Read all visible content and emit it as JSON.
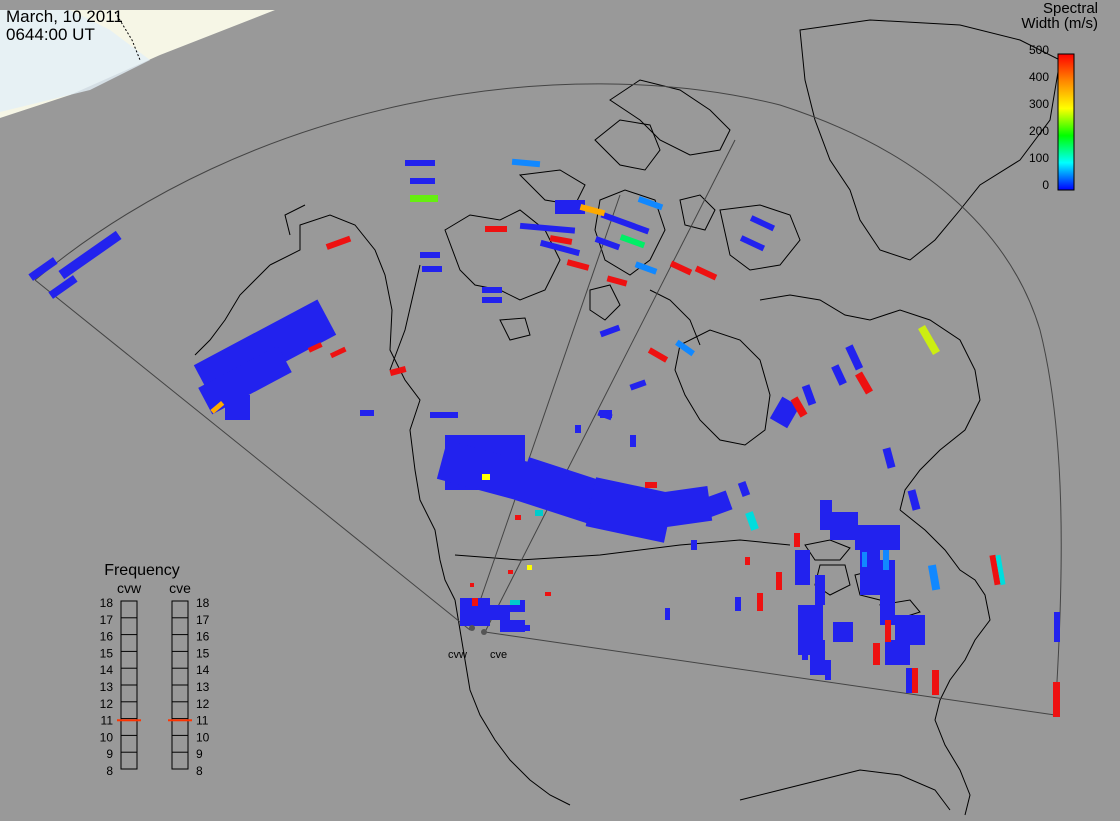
{
  "header": {
    "date": "March, 10 2011",
    "time": "0644:00 UT"
  },
  "colorbar": {
    "title_line1": "Spectral",
    "title_line2": "Width (m/s)",
    "ticks": [
      "500",
      "400",
      "300",
      "200",
      "100",
      "0"
    ],
    "stops": [
      "#ff0000",
      "#ff8800",
      "#ffff00",
      "#00ff00",
      "#00ffff",
      "#0000ff"
    ]
  },
  "frequency": {
    "title": "Frequency",
    "left_label": "cvw",
    "right_label": "cve",
    "ticks": [
      "18",
      "17",
      "16",
      "15",
      "14",
      "13",
      "12",
      "11",
      "10",
      "9",
      "8"
    ],
    "cvw_value": 10.9,
    "cve_value": 10.9,
    "marker_color": "#ff3300"
  },
  "radars": {
    "west_label": "cvw",
    "east_label": "cve"
  },
  "colors": {
    "background": "#999999",
    "daylight": "#f7f7e4",
    "coast": "#000000",
    "fov": "#333333"
  }
}
